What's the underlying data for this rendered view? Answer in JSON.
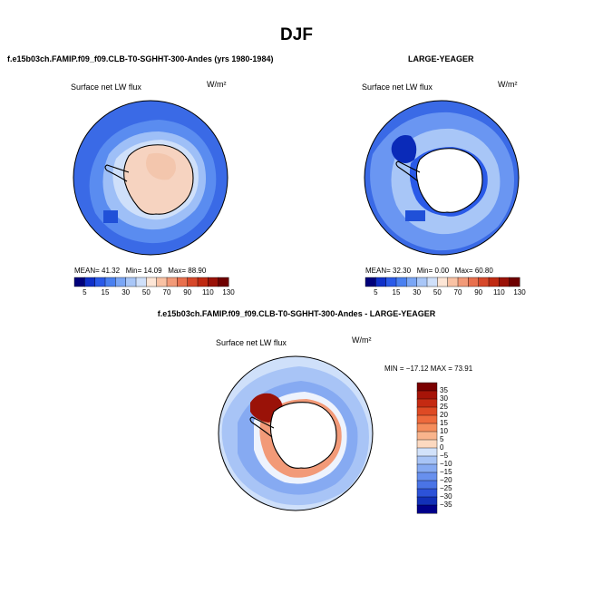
{
  "title": "DJF",
  "panels": [
    {
      "id": "model",
      "title": "f.e15b03ch.FAMIP.f09_f09.CLB-T0-SGHHT-300-Andes (yrs 1980-1984)",
      "variable": "Surface net LW flux",
      "units": "W/m²",
      "stats": {
        "mean_label": "MEAN=",
        "mean": "41.32",
        "min_label": "Min=",
        "min": "14.09",
        "max_label": "Max=",
        "max": "88.90"
      }
    },
    {
      "id": "obs",
      "title": "LARGE-YEAGER",
      "variable": "Surface net LW flux",
      "units": "W/m²",
      "stats": {
        "mean_label": "MEAN=",
        "mean": "32.30",
        "min_label": "Min=",
        "min": "0.00",
        "max_label": "Max=",
        "max": "60.80"
      }
    },
    {
      "id": "diff",
      "title": "f.e15b03ch.FAMIP.f09_f09.CLB-T0-SGHHT-300-Andes - LARGE-YEAGER",
      "variable": "Surface net LW flux",
      "units": "W/m²",
      "stats_text": "MIN = −17.12  MAX =  73.91"
    }
  ],
  "colorbar_abs": {
    "tick_labels": [
      "5",
      "15",
      "30",
      "50",
      "70",
      "90",
      "110",
      "130"
    ],
    "colors": [
      "#00007a",
      "#1030c8",
      "#2a5ae8",
      "#4a80f0",
      "#7aa6f5",
      "#a8c6f7",
      "#cfe0fa",
      "#fde6d6",
      "#f9c2a4",
      "#f29a78",
      "#e8704e",
      "#d6482a",
      "#bf2a12",
      "#9a1208",
      "#6e0000"
    ]
  },
  "colorbar_diff": {
    "tick_labels": [
      "35",
      "30",
      "25",
      "20",
      "15",
      "10",
      "5",
      "0",
      "−5",
      "−10",
      "−15",
      "−20",
      "−25",
      "−30",
      "−35"
    ],
    "colors": [
      "#7a0000",
      "#a61408",
      "#c52a12",
      "#de4a24",
      "#ee6a3c",
      "#f58d5c",
      "#f9b48c",
      "#fcd9c0",
      "#d2e2fa",
      "#a8c4f6",
      "#86aaf2",
      "#6890ee",
      "#4a74e6",
      "#2c52d8",
      "#1230b8",
      "#00008a"
    ]
  }
}
